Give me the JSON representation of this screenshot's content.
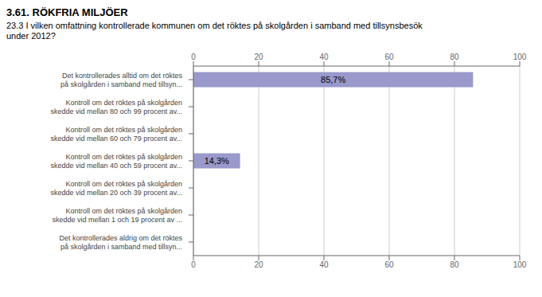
{
  "chart_data": {
    "type": "bar",
    "orientation": "horizontal",
    "title": "3.61. RÖKFRIA MILJÖER",
    "subtitle": "23.3 I vilken omfattning kontrollerade kommunen om det röktes på skolgården i samband med tillsynsbesök\nunder 2012?",
    "categories": [
      "Det kontrollerades alltid om det röktes\npå skolgården i samband med tillsyn...",
      "Kontroll om det röktes på skolgården\nskedde vid mellan 80 och 99 procent av...",
      "Kontroll om det röktes på skolgården\nskedde vid mellan 60 och 79 procent av...",
      "Kontroll om det röktes på skolgården\nskedde vid mellan 40 och 59 procent av...",
      "Kontroll om det röktes på skolgården\nskedde vid mellan 20 och 39 procent av...",
      "Kontroll om det röktes på skolgården\nskedde vid mellan 1 och 19 procent av ...",
      "Det kontrollerades aldrig om det röktes\npå skolgården i samband med tillsyn..."
    ],
    "values": [
      85.7,
      0.0,
      0.0,
      14.3,
      0.0,
      0.0,
      0.0
    ],
    "value_labels": [
      "85,7%",
      null,
      null,
      "14,3%",
      null,
      null,
      null
    ],
    "data_labels": true,
    "color": "#9999cc",
    "xlim": [
      0,
      100
    ],
    "xticks": [
      0,
      20,
      40,
      60,
      80,
      100
    ],
    "grid": true
  }
}
